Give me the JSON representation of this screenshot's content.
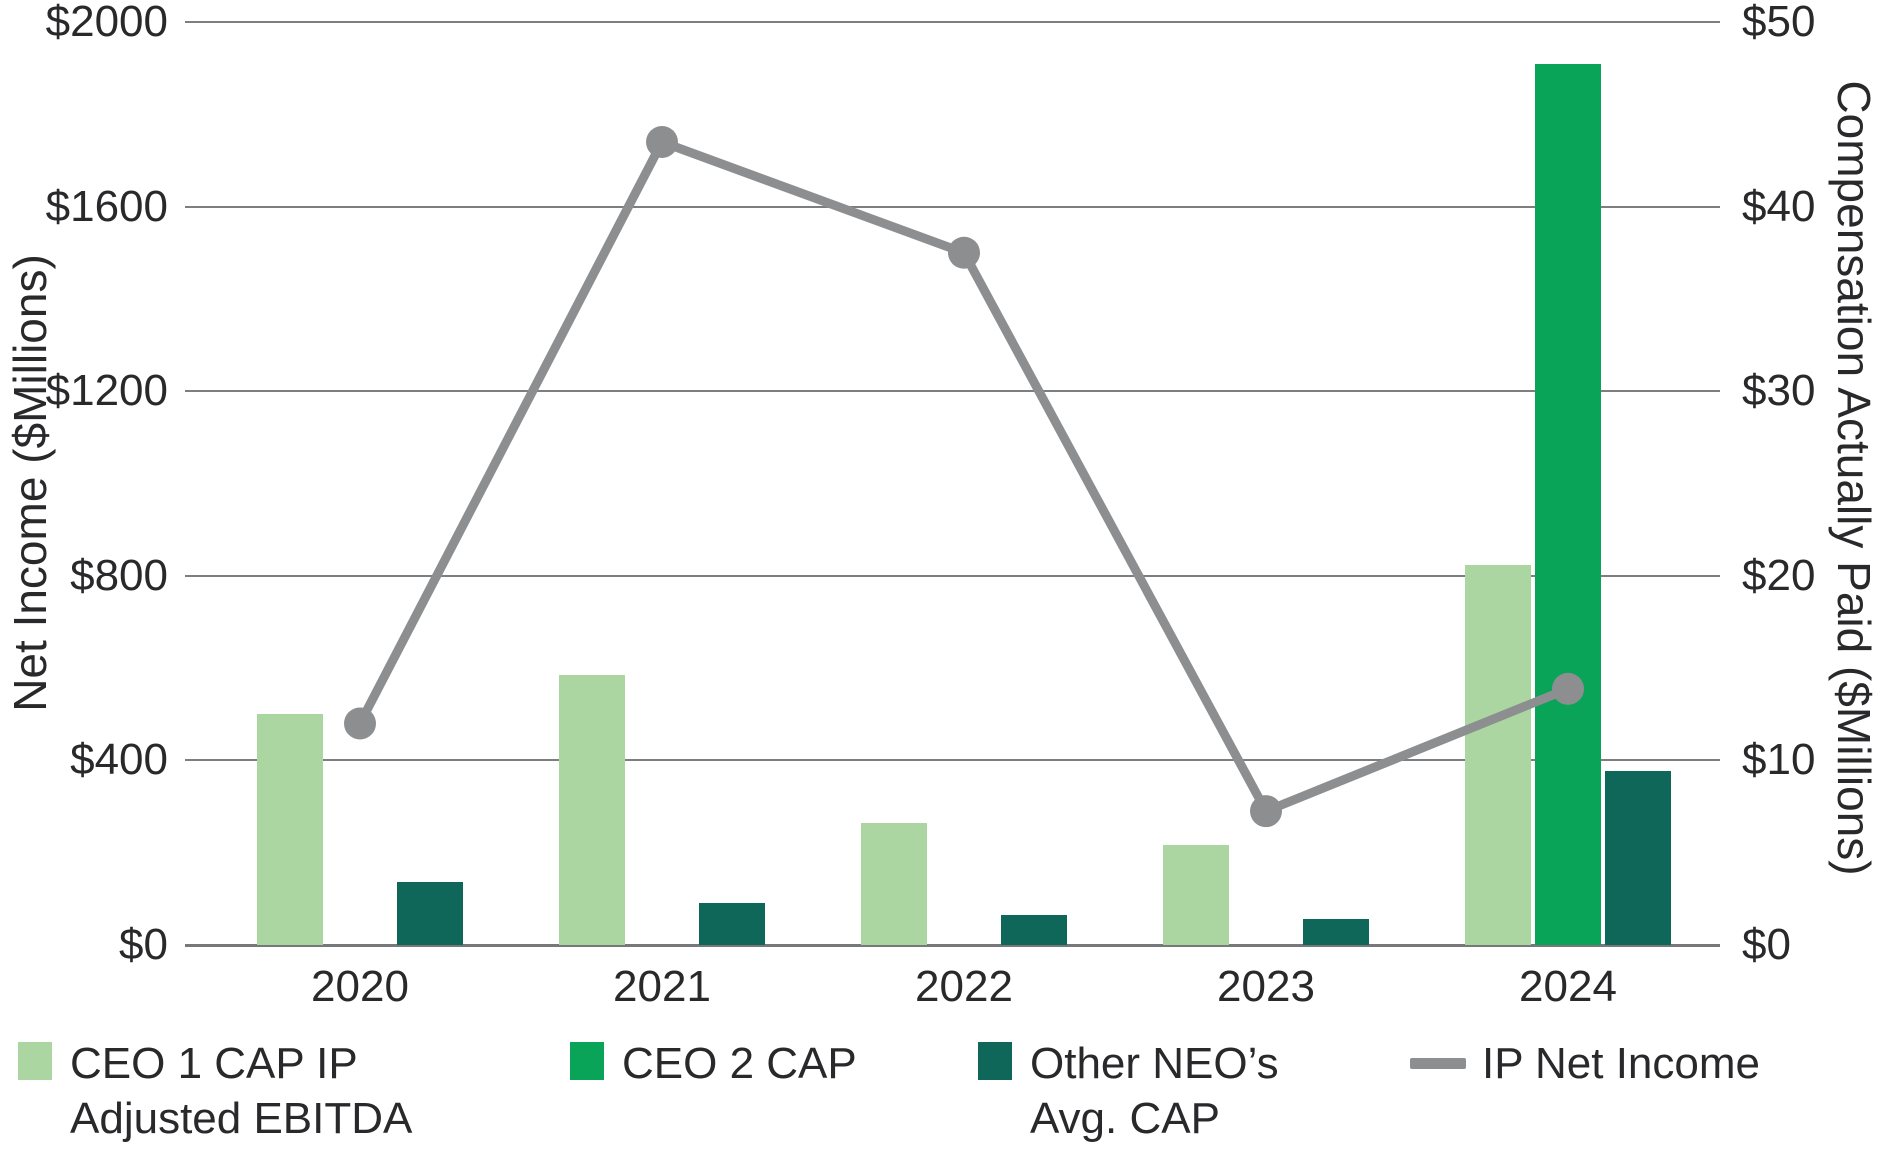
{
  "chart_data": {
    "type": "bar",
    "subtype": "dual-axis combo: grouped bars (right axis) + line (left axis)",
    "categories": [
      "2020",
      "2021",
      "2022",
      "2023",
      "2024"
    ],
    "series": [
      {
        "name": "CEO 1 CAP IP Adjusted EBITDA",
        "kind": "bar",
        "axis": "right",
        "color": "#abd6a1",
        "values": [
          12.5,
          14.6,
          6.6,
          5.4,
          20.6
        ]
      },
      {
        "name": "CEO 2 CAP",
        "kind": "bar",
        "axis": "right",
        "color": "#0aa459",
        "values": [
          null,
          null,
          null,
          null,
          47.7
        ]
      },
      {
        "name": "Other NEO’s Avg. CAP",
        "kind": "bar",
        "axis": "right",
        "color": "#0e6758",
        "values": [
          3.4,
          2.3,
          1.6,
          1.4,
          9.4
        ]
      },
      {
        "name": "IP Net Income",
        "kind": "line",
        "axis": "left",
        "color": "#8d8e90",
        "values": [
          480,
          1740,
          1500,
          290,
          555
        ]
      }
    ],
    "left_axis": {
      "title": "Net Income ($Millions)",
      "min": 0,
      "max": 2000,
      "tick_labels": [
        "$0",
        "$400",
        "$800",
        "$1200",
        "$1600",
        "$2000"
      ],
      "tick_values": [
        0,
        400,
        800,
        1200,
        1600,
        2000
      ]
    },
    "right_axis": {
      "title": "Compensation Actually Paid ($Millions)",
      "min": 0,
      "max": 50,
      "tick_labels": [
        "$0",
        "$10",
        "$20",
        "$30",
        "$40",
        "$50"
      ],
      "tick_values": [
        0,
        10,
        20,
        30,
        40,
        50
      ]
    },
    "xlabel": "",
    "grid": true,
    "legend_position": "bottom",
    "legend_items": [
      {
        "marker": "square",
        "color": "#abd6a1",
        "lines": [
          "CEO 1 CAP IP",
          "Adjusted EBITDA"
        ]
      },
      {
        "marker": "square",
        "color": "#0aa459",
        "lines": [
          "CEO 2 CAP"
        ]
      },
      {
        "marker": "square",
        "color": "#0e6758",
        "lines": [
          "Other NEO’s",
          "Avg. CAP"
        ]
      },
      {
        "marker": "line",
        "color": "#8d8e90",
        "lines": [
          "IP Net Income"
        ]
      }
    ],
    "colors": {
      "gridline": "#7d7e80",
      "baseline": "#77787a",
      "text": "#29292b"
    }
  }
}
